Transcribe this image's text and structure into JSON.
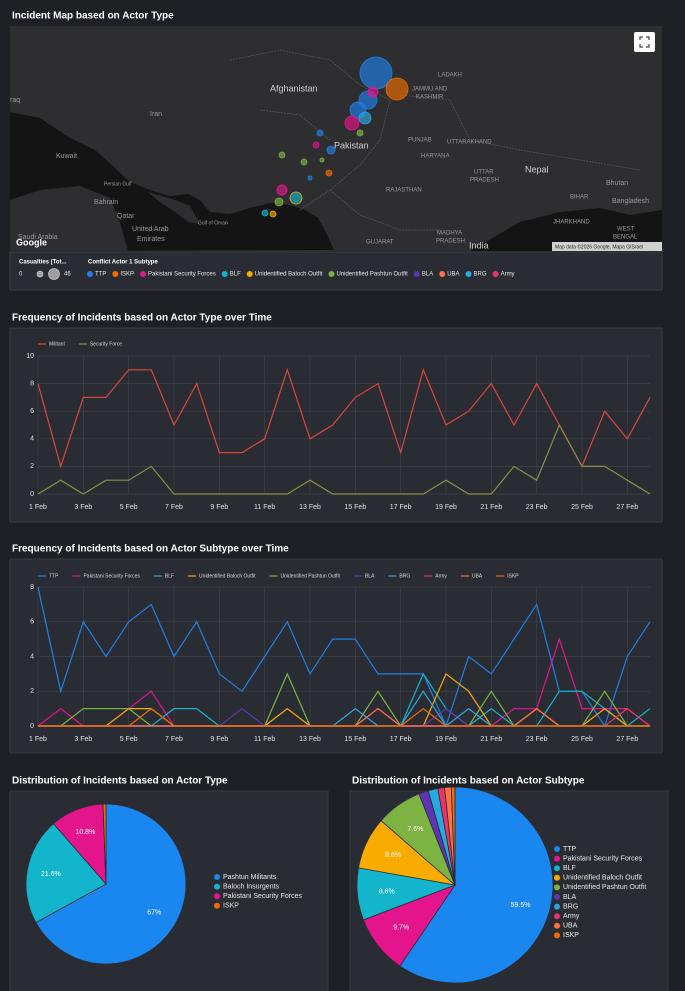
{
  "map": {
    "title": "Incident Map based on Actor Type",
    "labels": [
      "raq",
      "Iran",
      "Afghanistan",
      "Kuwait",
      "Bahrain",
      "Qatar",
      "United Arab",
      "Emirates",
      "Saudi Arabia",
      "Persian Gulf",
      "Gulf of Oman",
      "Pakistan",
      "LADAKH",
      "JAMMU AND",
      "KASHMIR",
      "PUNJAB",
      "UTTARAKHAND",
      "HARYANA",
      "UTTAR",
      "PRADESH",
      "RAJASTHAN",
      "Nepal",
      "Bhutan",
      "BIHAR",
      "Bangladesh",
      "JHARKHAND",
      "WEST",
      "BENGAL",
      "MADHYA",
      "PRADESH",
      "GUJARAT",
      "India"
    ],
    "attribution": "Map data ©2026 Google, Mapa GISrael",
    "logo": "Google",
    "size_legend": {
      "title": "Casualties (Tot...",
      "min": 0,
      "max": 46
    },
    "color_legend": {
      "title": "Conflict Actor 1 Subtype",
      "items": [
        {
          "label": "TTP",
          "color": "#1f7fe8"
        },
        {
          "label": "ISKP",
          "color": "#ef6c00"
        },
        {
          "label": "Pakistani Security Forces",
          "color": "#e3148c"
        },
        {
          "label": "BLF",
          "color": "#12b5cb"
        },
        {
          "label": "Unidentified Baloch Outfit",
          "color": "#f9ab00"
        },
        {
          "label": "Unidentified Pashtun Outfit",
          "color": "#7cb342"
        },
        {
          "label": "BLA",
          "color": "#5e35b1"
        },
        {
          "label": "UBA",
          "color": "#ff7043"
        },
        {
          "label": "BRG",
          "color": "#29a8e0"
        },
        {
          "label": "Army",
          "color": "#e8336c"
        }
      ]
    }
  },
  "chart_data": [
    {
      "type": "line",
      "title": "Frequency of Incidents based on Actor Type over Time",
      "categories": [
        "1 Feb",
        null,
        "3 Feb",
        null,
        "5 Feb",
        null,
        "7 Feb",
        null,
        "9 Feb",
        null,
        "11 Feb",
        null,
        "13 Feb",
        null,
        "15 Feb",
        null,
        "17 Feb",
        null,
        "19 Feb",
        null,
        "21 Feb",
        null,
        "23 Feb",
        null,
        "25 Feb",
        null,
        "27 Feb",
        null
      ],
      "series": [
        {
          "name": "Militant",
          "color": "#d9463e",
          "values": [
            8,
            2,
            7,
            7,
            9,
            9,
            5,
            8,
            3,
            3,
            4,
            9,
            4,
            5,
            7,
            8,
            3,
            9,
            5,
            6,
            8,
            5,
            8,
            5,
            2,
            6,
            4,
            7
          ]
        },
        {
          "name": "Security Force",
          "color": "#8a8f45",
          "values": [
            0,
            1,
            0,
            1,
            1,
            2,
            0,
            0,
            0,
            0,
            0,
            0,
            1,
            0,
            0,
            0,
            0,
            0,
            1,
            0,
            0,
            2,
            1,
            5,
            2,
            2,
            1,
            0
          ]
        }
      ],
      "ylim": [
        0,
        10
      ],
      "yticks": [
        0,
        2,
        4,
        6,
        8,
        10
      ],
      "grid": true
    },
    {
      "type": "line",
      "title": "Frequency of Incidents based on Actor Subtype over Time",
      "categories": [
        "1 Feb",
        null,
        "3 Feb",
        null,
        "5 Feb",
        null,
        "7 Feb",
        null,
        "9 Feb",
        null,
        "11 Feb",
        null,
        "13 Feb",
        null,
        "15 Feb",
        null,
        "17 Feb",
        null,
        "19 Feb",
        null,
        "21 Feb",
        null,
        "23 Feb",
        null,
        "25 Feb",
        null,
        "27 Feb",
        null
      ],
      "series": [
        {
          "name": "TTP",
          "color": "#1f7fe8",
          "values": [
            8,
            2,
            6,
            4,
            6,
            7,
            4,
            6,
            3,
            2,
            4,
            6,
            3,
            5,
            5,
            3,
            3,
            3,
            0,
            4,
            3,
            5,
            7,
            2,
            2,
            0,
            4,
            6
          ]
        },
        {
          "name": "Pakistani Security Forces",
          "color": "#e3148c",
          "values": [
            0,
            1,
            0,
            0,
            1,
            2,
            0,
            0,
            0,
            0,
            0,
            0,
            0,
            0,
            0,
            1,
            0,
            0,
            0,
            0,
            0,
            1,
            1,
            5,
            1,
            1,
            1,
            0
          ]
        },
        {
          "name": "BLF",
          "color": "#12b5cb",
          "values": [
            0,
            0,
            0,
            0,
            0,
            0,
            1,
            1,
            0,
            0,
            0,
            0,
            0,
            0,
            0,
            0,
            0,
            3,
            1,
            0,
            1,
            0,
            0,
            2,
            2,
            1,
            0,
            1
          ]
        },
        {
          "name": "Unidentified Baloch Outfit",
          "color": "#f9ab00",
          "values": [
            0,
            0,
            0,
            0,
            1,
            1,
            0,
            0,
            0,
            0,
            0,
            1,
            0,
            0,
            0,
            0,
            0,
            0,
            3,
            2,
            0,
            0,
            1,
            0,
            0,
            1,
            0,
            0
          ]
        },
        {
          "name": "Unidentified Pashtun Outfit",
          "color": "#7cb342",
          "values": [
            0,
            0,
            1,
            1,
            1,
            0,
            0,
            0,
            0,
            0,
            0,
            3,
            0,
            0,
            0,
            2,
            0,
            0,
            0,
            0,
            2,
            0,
            0,
            0,
            0,
            2,
            0,
            0
          ]
        },
        {
          "name": "BLA",
          "color": "#5e35b1",
          "values": [
            0,
            0,
            0,
            0,
            0,
            0,
            0,
            0,
            0,
            1,
            0,
            0,
            0,
            0,
            0,
            1,
            0,
            0,
            1,
            0,
            0,
            0,
            0,
            0,
            0,
            0,
            0,
            0
          ]
        },
        {
          "name": "BRG",
          "color": "#29a8e0",
          "values": [
            0,
            0,
            0,
            0,
            0,
            0,
            0,
            0,
            0,
            0,
            0,
            0,
            0,
            0,
            1,
            0,
            0,
            2,
            0,
            1,
            0,
            0,
            0,
            0,
            0,
            0,
            0,
            0
          ]
        },
        {
          "name": "Army",
          "color": "#e8336c",
          "values": [
            0,
            0,
            0,
            0,
            0,
            0,
            0,
            0,
            0,
            0,
            0,
            0,
            0,
            0,
            0,
            0,
            0,
            0,
            0,
            0,
            0,
            0,
            0,
            0,
            0,
            0,
            1,
            0
          ]
        },
        {
          "name": "UBA",
          "color": "#ff7043",
          "values": [
            0,
            0,
            0,
            0,
            0,
            0,
            0,
            0,
            0,
            0,
            0,
            0,
            0,
            0,
            0,
            1,
            0,
            0,
            0,
            0,
            0,
            0,
            1,
            0,
            0,
            0,
            0,
            0
          ]
        },
        {
          "name": "ISKP",
          "color": "#ef6c00",
          "values": [
            0,
            0,
            0,
            0,
            0,
            1,
            0,
            0,
            0,
            0,
            0,
            0,
            0,
            0,
            0,
            0,
            0,
            1,
            0,
            0,
            0,
            0,
            0,
            0,
            0,
            0,
            0,
            0
          ]
        }
      ],
      "ylim": [
        0,
        8
      ],
      "yticks": [
        0,
        2,
        4,
        6,
        8
      ],
      "grid": true
    },
    {
      "type": "pie",
      "title": "Distribution of Incidents based on Actor Type",
      "categories": [
        "Pashtun Militants",
        "Baloch Insurgents",
        "Pakistani Security Forces",
        "ISKP"
      ],
      "values": [
        67,
        21.6,
        10.8,
        0.6
      ],
      "value_labels": [
        "67%",
        "21.6%",
        "10.8%",
        null
      ],
      "colors": [
        "#1a86f0",
        "#12b5cb",
        "#e3148c",
        "#ef6c00"
      ]
    },
    {
      "type": "pie",
      "title": "Distribution of Incidents based on Actor Subtype",
      "categories": [
        "TTP",
        "Pakistani Security Forces",
        "BLF",
        "Unidentified Baloch Outfit",
        "Unidentified Pashtun Outfit",
        "BLA",
        "BRG",
        "Army",
        "UBA",
        "ISKP"
      ],
      "values": [
        59.5,
        9.7,
        8.6,
        8.6,
        7.6,
        1.6,
        1.6,
        1.1,
        1.1,
        0.6
      ],
      "value_labels": [
        "59.5%",
        "9.7%",
        "8.6%",
        "8.6%",
        "7.6%",
        null,
        null,
        null,
        null,
        null
      ],
      "colors": [
        "#1a86f0",
        "#e3148c",
        "#12b5cb",
        "#f9ab00",
        "#7cb342",
        "#5e35b1",
        "#29a8e0",
        "#e8336c",
        "#ff7043",
        "#ef6c00"
      ]
    }
  ]
}
